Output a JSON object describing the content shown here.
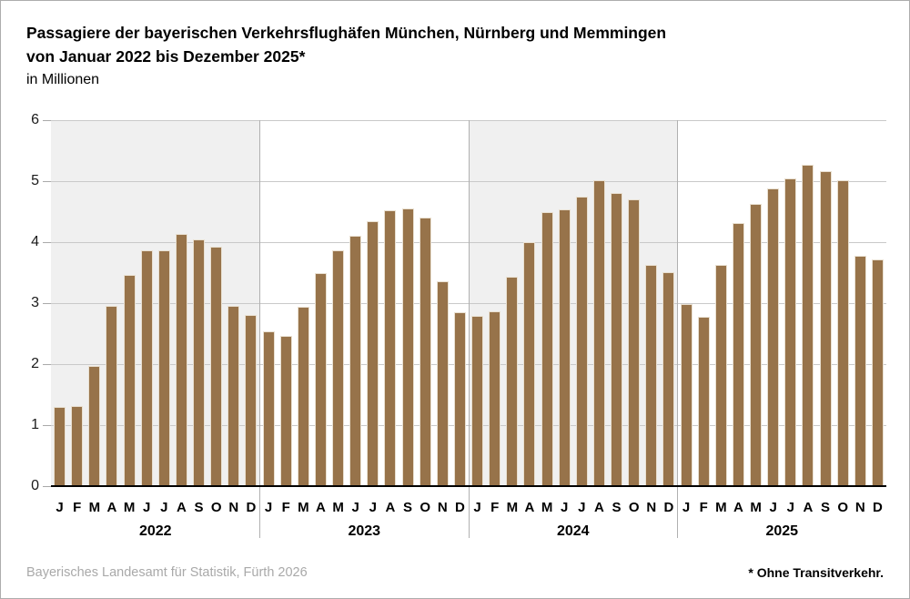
{
  "header": {
    "title_line1": "Passagiere der bayerischen Verkehrsflughäfen München, Nürnberg und Memmingen",
    "title_line2": "von Januar 2022 bis Dezember 2025*",
    "subtitle": "in Millionen"
  },
  "footer": {
    "source": "Bayerisches Landesamt für Statistik, Fürth 2026",
    "note": "* Ohne Transitverkehr."
  },
  "chart_data": {
    "type": "bar",
    "title": "Passagiere der bayerischen Verkehrsflughäfen München, Nürnberg und Memmingen von Januar 2022 bis Dezember 2025*",
    "unit_label": "in Millionen",
    "ylim": [
      0,
      6
    ],
    "yticks": [
      0,
      1,
      2,
      3,
      4,
      5,
      6
    ],
    "grid": true,
    "month_letters": [
      "J",
      "F",
      "M",
      "A",
      "M",
      "J",
      "J",
      "A",
      "S",
      "O",
      "N",
      "D"
    ],
    "series": [
      {
        "name": "2022",
        "shaded": true,
        "values": [
          1.3,
          1.31,
          1.97,
          2.95,
          3.46,
          3.86,
          3.87,
          4.14,
          4.04,
          3.92,
          2.95,
          2.81
        ]
      },
      {
        "name": "2023",
        "shaded": false,
        "values": [
          2.54,
          2.46,
          2.94,
          3.5,
          3.87,
          4.1,
          4.35,
          4.52,
          4.55,
          4.4,
          3.36,
          2.85
        ]
      },
      {
        "name": "2024",
        "shaded": true,
        "values": [
          2.79,
          2.87,
          3.44,
          4.0,
          4.49,
          4.54,
          4.74,
          5.01,
          4.8,
          4.7,
          3.62,
          3.51
        ]
      },
      {
        "name": "2025",
        "shaded": false,
        "values": [
          2.99,
          2.78,
          3.62,
          4.31,
          4.62,
          4.88,
          5.05,
          5.27,
          5.17,
          5.02,
          3.77,
          3.72
        ]
      }
    ],
    "colors": {
      "bar": "#97734a",
      "bar_border": "#e9e0d1",
      "panel_shaded": "#f0f0f0",
      "panel_plain": "#ffffff",
      "gridline": "#c9c9c9",
      "separator": "#b0b0b0",
      "baseline": "#000000"
    },
    "legend_position": "none"
  }
}
